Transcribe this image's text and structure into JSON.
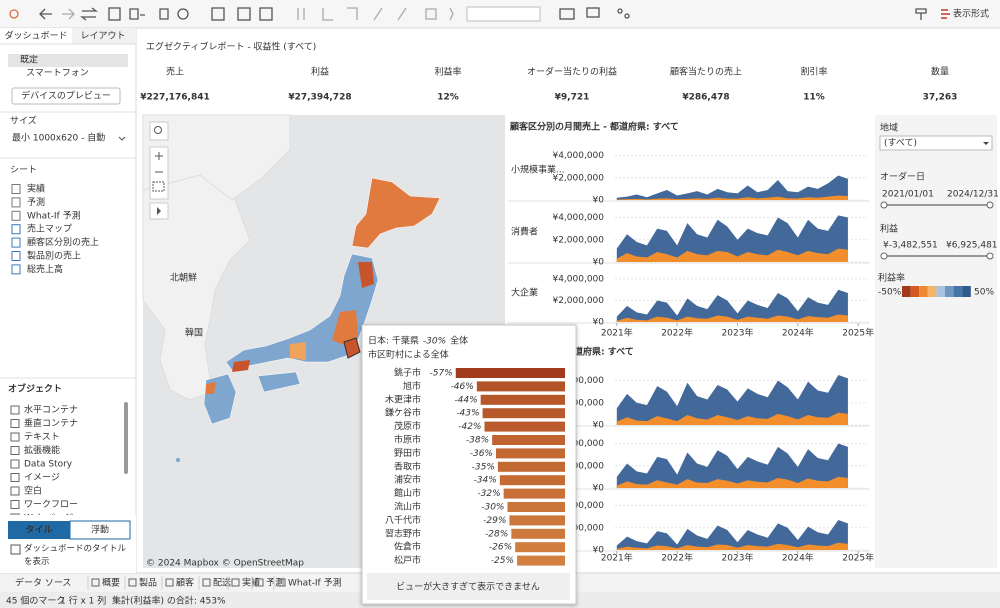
{
  "toolbar": {
    "format_label": "表示形式"
  },
  "left_panel": {
    "tabs": [
      "ダッシュボード",
      "レイアウト"
    ],
    "device_default": "既定",
    "device_phone": "スマートフォン",
    "preview_button": "デバイスのプレビュー",
    "size_heading": "サイズ",
    "size_value": "最小 1000x620 - 自動",
    "sheets_heading": "シート",
    "sheets": [
      "実績",
      "予測",
      "What-If 予測",
      "売上マップ",
      "顧客区分別の売上",
      "製品別の売上",
      "総売上高"
    ],
    "objects_heading": "オブジェクト",
    "objects": [
      "水平コンテナ",
      "垂直コンテナ",
      "テキスト",
      "拡張機能",
      "Data Story",
      "イメージ",
      "空白",
      "ワークフロー",
      "Web ページ"
    ],
    "layout_modes": [
      "タイル",
      "浮動"
    ],
    "show_title_checkbox": "ダッシュボードのタイトルを表示"
  },
  "dashboard": {
    "title": "エグゼクティブレポート - 収益性 (すべて)",
    "kpis": [
      {
        "label": "売上",
        "value": "¥227,176,841"
      },
      {
        "label": "利益",
        "value": "¥27,394,728"
      },
      {
        "label": "利益率",
        "value": "12%"
      },
      {
        "label": "オーダー当たりの利益",
        "value": "¥9,721"
      },
      {
        "label": "顧客当たりの売上",
        "value": "¥286,478"
      },
      {
        "label": "割引率",
        "value": "11%"
      },
      {
        "label": "数量",
        "value": "37,263"
      }
    ]
  },
  "map": {
    "labels": [
      "北朝鮮",
      "韓国"
    ],
    "attribution": "© 2024 Mapbox © OpenStreetMap"
  },
  "filters": {
    "region": {
      "label": "地域",
      "value": "(すべて)"
    },
    "order_date": {
      "label": "オーダー日",
      "start": "2021/01/01",
      "end": "2024/12/31"
    },
    "profit": {
      "label": "利益",
      "min": "¥-3,482,551",
      "max": "¥6,925,481"
    },
    "profit_ratio": {
      "label": "利益率",
      "min": "-50%",
      "max": "50%",
      "colors": [
        "#a3391b",
        "#d45a22",
        "#ec8a32",
        "#f6b46a",
        "#a8c3dd",
        "#6f97c2",
        "#4675a8",
        "#2d5b8e"
      ]
    }
  },
  "chart_data": [
    {
      "type": "area",
      "title": "顧客区分別の月間売上 - 都道府県: すべて",
      "x": [
        2021,
        2021.17,
        2021.33,
        2021.5,
        2021.67,
        2021.83,
        2022,
        2022.17,
        2022.33,
        2022.5,
        2022.67,
        2022.83,
        2023,
        2023.17,
        2023.33,
        2023.5,
        2023.67,
        2023.83,
        2024,
        2024.17,
        2024.33,
        2024.5,
        2024.67,
        2024.83
      ],
      "xlim": [
        2020.97,
        2025.03
      ],
      "xticks": [
        {
          "value": 2021,
          "label": "2021年"
        },
        {
          "value": 2022,
          "label": "2022年"
        },
        {
          "value": 2023,
          "label": "2023年"
        },
        {
          "value": 2024,
          "label": "2024年"
        },
        {
          "value": 2025,
          "label": "2025年"
        }
      ],
      "ylim": [
        0,
        5400000
      ],
      "yticks": [
        {
          "value": 0,
          "label": "¥0"
        },
        {
          "value": 2000000,
          "label": "¥2,000,000"
        },
        {
          "value": 4000000,
          "label": "¥4,000,000"
        }
      ],
      "grid": true,
      "rows": [
        {
          "label": "小規模事業...",
          "series": [
            {
              "color": "#43699b",
              "values": [
                200000,
                300000,
                500000,
                250000,
                600000,
                900000,
                400000,
                600000,
                800000,
                500000,
                1000000,
                700000,
                600000,
                1300000,
                700000,
                900000,
                1800000,
                800000,
                700000,
                1200000,
                1000000,
                1500000,
                2200000,
                1900000
              ]
            },
            {
              "color": "#f28e2b",
              "values": [
                50000,
                80000,
                100000,
                60000,
                120000,
                150000,
                80000,
                100000,
                150000,
                100000,
                200000,
                120000,
                120000,
                250000,
                150000,
                200000,
                300000,
                150000,
                150000,
                250000,
                200000,
                300000,
                400000,
                350000
              ]
            }
          ]
        },
        {
          "label": "消費者",
          "series": [
            {
              "color": "#43699b",
              "values": [
                1200000,
                2500000,
                1800000,
                1500000,
                3000000,
                2800000,
                1500000,
                3500000,
                2500000,
                2200000,
                3800000,
                3200000,
                2000000,
                3000000,
                2600000,
                2400000,
                4000000,
                3500000,
                2200000,
                3800000,
                3000000,
                2800000,
                4200000,
                4000000
              ]
            },
            {
              "color": "#f28e2b",
              "values": [
                300000,
                800000,
                500000,
                400000,
                900000,
                700000,
                400000,
                1000000,
                700000,
                600000,
                1000000,
                900000,
                500000,
                900000,
                700000,
                600000,
                1100000,
                900000,
                600000,
                1000000,
                800000,
                700000,
                1200000,
                1100000
              ]
            }
          ]
        },
        {
          "label": "大企業",
          "series": [
            {
              "color": "#43699b",
              "values": [
                500000,
                1500000,
                900000,
                700000,
                2000000,
                1800000,
                600000,
                2200000,
                1500000,
                1200000,
                2500000,
                2000000,
                800000,
                2000000,
                1600000,
                1300000,
                2700000,
                2200000,
                1000000,
                2300000,
                1800000,
                1600000,
                3000000,
                2700000
              ]
            },
            {
              "color": "#f28e2b",
              "values": [
                100000,
                400000,
                200000,
                150000,
                500000,
                400000,
                150000,
                500000,
                350000,
                300000,
                600000,
                500000,
                200000,
                500000,
                400000,
                300000,
                600000,
                500000,
                250000,
                550000,
                450000,
                400000,
                700000,
                600000
              ]
            }
          ]
        }
      ]
    },
    {
      "type": "area",
      "title": "の月間売上 - 都道府県: すべて",
      "x": [
        2021,
        2021.17,
        2021.33,
        2021.5,
        2021.67,
        2021.83,
        2022,
        2022.17,
        2022.33,
        2022.5,
        2022.67,
        2022.83,
        2023,
        2023.17,
        2023.33,
        2023.5,
        2023.67,
        2023.83,
        2024,
        2024.17,
        2024.33,
        2024.5,
        2024.67,
        2024.83
      ],
      "xlim": [
        2020.97,
        2025.03
      ],
      "xticks": [
        {
          "value": 2021,
          "label": "2021年"
        },
        {
          "value": 2022,
          "label": "2022年"
        },
        {
          "value": 2023,
          "label": "2023年"
        },
        {
          "value": 2024,
          "label": "2024年"
        },
        {
          "value": 2025,
          "label": "2025年"
        }
      ],
      "ylim": [
        0,
        5400000
      ],
      "yticks": [
        {
          "value": 0,
          "label": "¥0"
        },
        {
          "value": 2000000,
          "label": "¥2,000,000"
        },
        {
          "value": 4000000,
          "label": "¥4,000,000"
        }
      ],
      "grid": true,
      "rows": [
        {
          "series": [
            {
              "color": "#43699b",
              "values": [
                1500000,
                2800000,
                2000000,
                1800000,
                3500000,
                3000000,
                1700000,
                3800000,
                2600000,
                2300000,
                3600000,
                3200000,
                2100000,
                3300000,
                2800000,
                2500000,
                4000000,
                3400000,
                2300000,
                3900000,
                3100000,
                2900000,
                4500000,
                4200000
              ]
            },
            {
              "color": "#f28e2b",
              "values": [
                300000,
                700000,
                400000,
                350000,
                800000,
                600000,
                350000,
                900000,
                600000,
                500000,
                900000,
                700000,
                450000,
                800000,
                600000,
                550000,
                1000000,
                800000,
                500000,
                900000,
                700000,
                650000,
                1100000,
                1000000
              ]
            }
          ]
        },
        {
          "series": [
            {
              "color": "#43699b",
              "values": [
                1000000,
                2200000,
                1500000,
                1300000,
                2800000,
                2600000,
                1200000,
                3200000,
                2200000,
                1900000,
                3400000,
                2900000,
                1700000,
                2800000,
                2400000,
                2100000,
                3700000,
                3100000,
                1900000,
                3500000,
                2700000,
                2500000,
                4000000,
                3700000
              ]
            },
            {
              "color": "#f28e2b",
              "values": [
                200000,
                600000,
                350000,
                300000,
                700000,
                500000,
                300000,
                800000,
                500000,
                450000,
                800000,
                650000,
                400000,
                700000,
                550000,
                500000,
                900000,
                750000,
                450000,
                850000,
                650000,
                600000,
                1000000,
                900000
              ]
            }
          ]
        },
        {
          "series": [
            {
              "color": "#43699b",
              "values": [
                400000,
                1200000,
                800000,
                600000,
                1700000,
                1500000,
                500000,
                1900000,
                1300000,
                1000000,
                2200000,
                1800000,
                700000,
                1800000,
                1400000,
                1100000,
                2400000,
                2000000,
                900000,
                2100000,
                1600000,
                1400000,
                2700000,
                2400000
              ]
            },
            {
              "color": "#f28e2b",
              "values": [
                100000,
                300000,
                200000,
                150000,
                400000,
                350000,
                150000,
                450000,
                300000,
                250000,
                500000,
                450000,
                200000,
                450000,
                350000,
                300000,
                550000,
                450000,
                250000,
                500000,
                400000,
                350000,
                650000,
                550000
              ]
            }
          ]
        }
      ]
    },
    {
      "type": "bar",
      "orientation": "horizontal",
      "title": "日本: 千葉県",
      "overall": "-30%",
      "overall_word": "全体",
      "subtitle": "市区町村による全体",
      "categories": [
        "銚子市",
        "旭市",
        "木更津市",
        "鎌ケ谷市",
        "茂原市",
        "市原市",
        "野田市",
        "香取市",
        "浦安市",
        "館山市",
        "流山市",
        "八千代市",
        "習志野市",
        "佐倉市",
        "松戸市"
      ],
      "values": [
        -57,
        -46,
        -44,
        -43,
        -42,
        -38,
        -36,
        -35,
        -34,
        -32,
        -30,
        -29,
        -28,
        -26,
        -25
      ],
      "value_labels": [
        "-57%",
        "-46%",
        "-44%",
        "-43%",
        "-42%",
        "-38%",
        "-36%",
        "-35%",
        "-34%",
        "-32%",
        "-30%",
        "-29%",
        "-28%",
        "-26%",
        "-25%"
      ],
      "xlim": [
        -60,
        0
      ],
      "color_scale": [
        "#9e3519",
        "#f7b45a"
      ],
      "button": "ビューが大きすぎて表示できません"
    }
  ],
  "bottom_tabs": [
    "データ ソース",
    "概要",
    "製品",
    "顧客",
    "配送",
    "実績",
    "予測",
    "What-If 予測"
  ],
  "status": [
    "45 個のマーク",
    "1 行 x 1 列",
    "集計(利益率) の合計: 453%"
  ]
}
